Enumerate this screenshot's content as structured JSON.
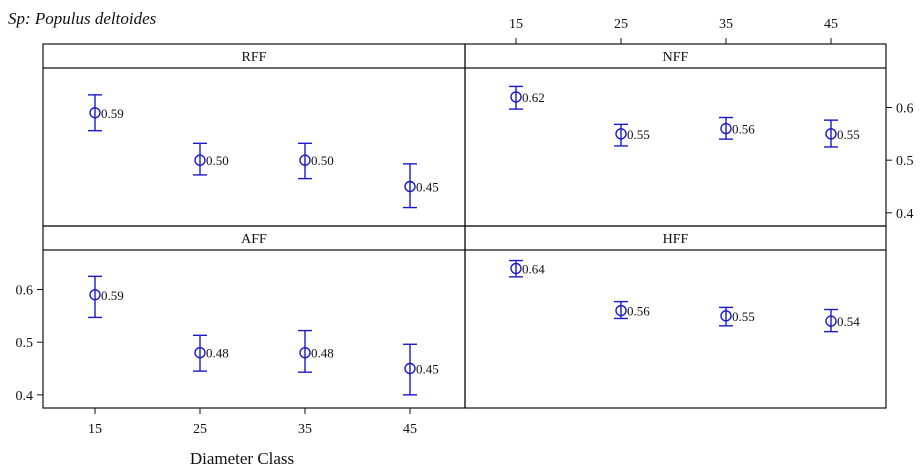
{
  "chart_data": {
    "type": "scatter",
    "title": "Sp: Populus deltoides",
    "xlabel": "Diameter Class",
    "ylabel": "",
    "x_ticks": [
      "15",
      "25",
      "35",
      "45"
    ],
    "y_ticks": [
      "0.4",
      "0.5",
      "0.6"
    ],
    "ylim": [
      0.375,
      0.675
    ],
    "grid": false,
    "marker_color": "#1a1acc",
    "error_bars": true,
    "panels": [
      {
        "name": "RFF",
        "x": [
          15,
          25,
          35,
          45
        ],
        "y": [
          0.59,
          0.5,
          0.5,
          0.45
        ],
        "lower": [
          0.556,
          0.472,
          0.465,
          0.41
        ],
        "upper": [
          0.624,
          0.532,
          0.532,
          0.493
        ],
        "labels": [
          "0.59",
          "0.50",
          "0.50",
          "0.45"
        ]
      },
      {
        "name": "NFF",
        "x": [
          15,
          25,
          35,
          45
        ],
        "y": [
          0.62,
          0.55,
          0.56,
          0.55
        ],
        "lower": [
          0.597,
          0.527,
          0.54,
          0.525
        ],
        "upper": [
          0.64,
          0.568,
          0.581,
          0.576
        ],
        "labels": [
          "0.62",
          "0.55",
          "0.56",
          "0.55"
        ]
      },
      {
        "name": "AFF",
        "x": [
          15,
          25,
          35,
          45
        ],
        "y": [
          0.59,
          0.48,
          0.48,
          0.45
        ],
        "lower": [
          0.547,
          0.445,
          0.443,
          0.4
        ],
        "upper": [
          0.625,
          0.513,
          0.522,
          0.496
        ],
        "labels": [
          "0.59",
          "0.48",
          "0.48",
          "0.45"
        ]
      },
      {
        "name": "HFF",
        "x": [
          15,
          25,
          35,
          45
        ],
        "y": [
          0.64,
          0.56,
          0.55,
          0.54
        ],
        "lower": [
          0.624,
          0.545,
          0.531,
          0.52
        ],
        "upper": [
          0.655,
          0.577,
          0.566,
          0.562
        ],
        "labels": [
          "0.64",
          "0.56",
          "0.55",
          "0.54"
        ]
      }
    ]
  }
}
